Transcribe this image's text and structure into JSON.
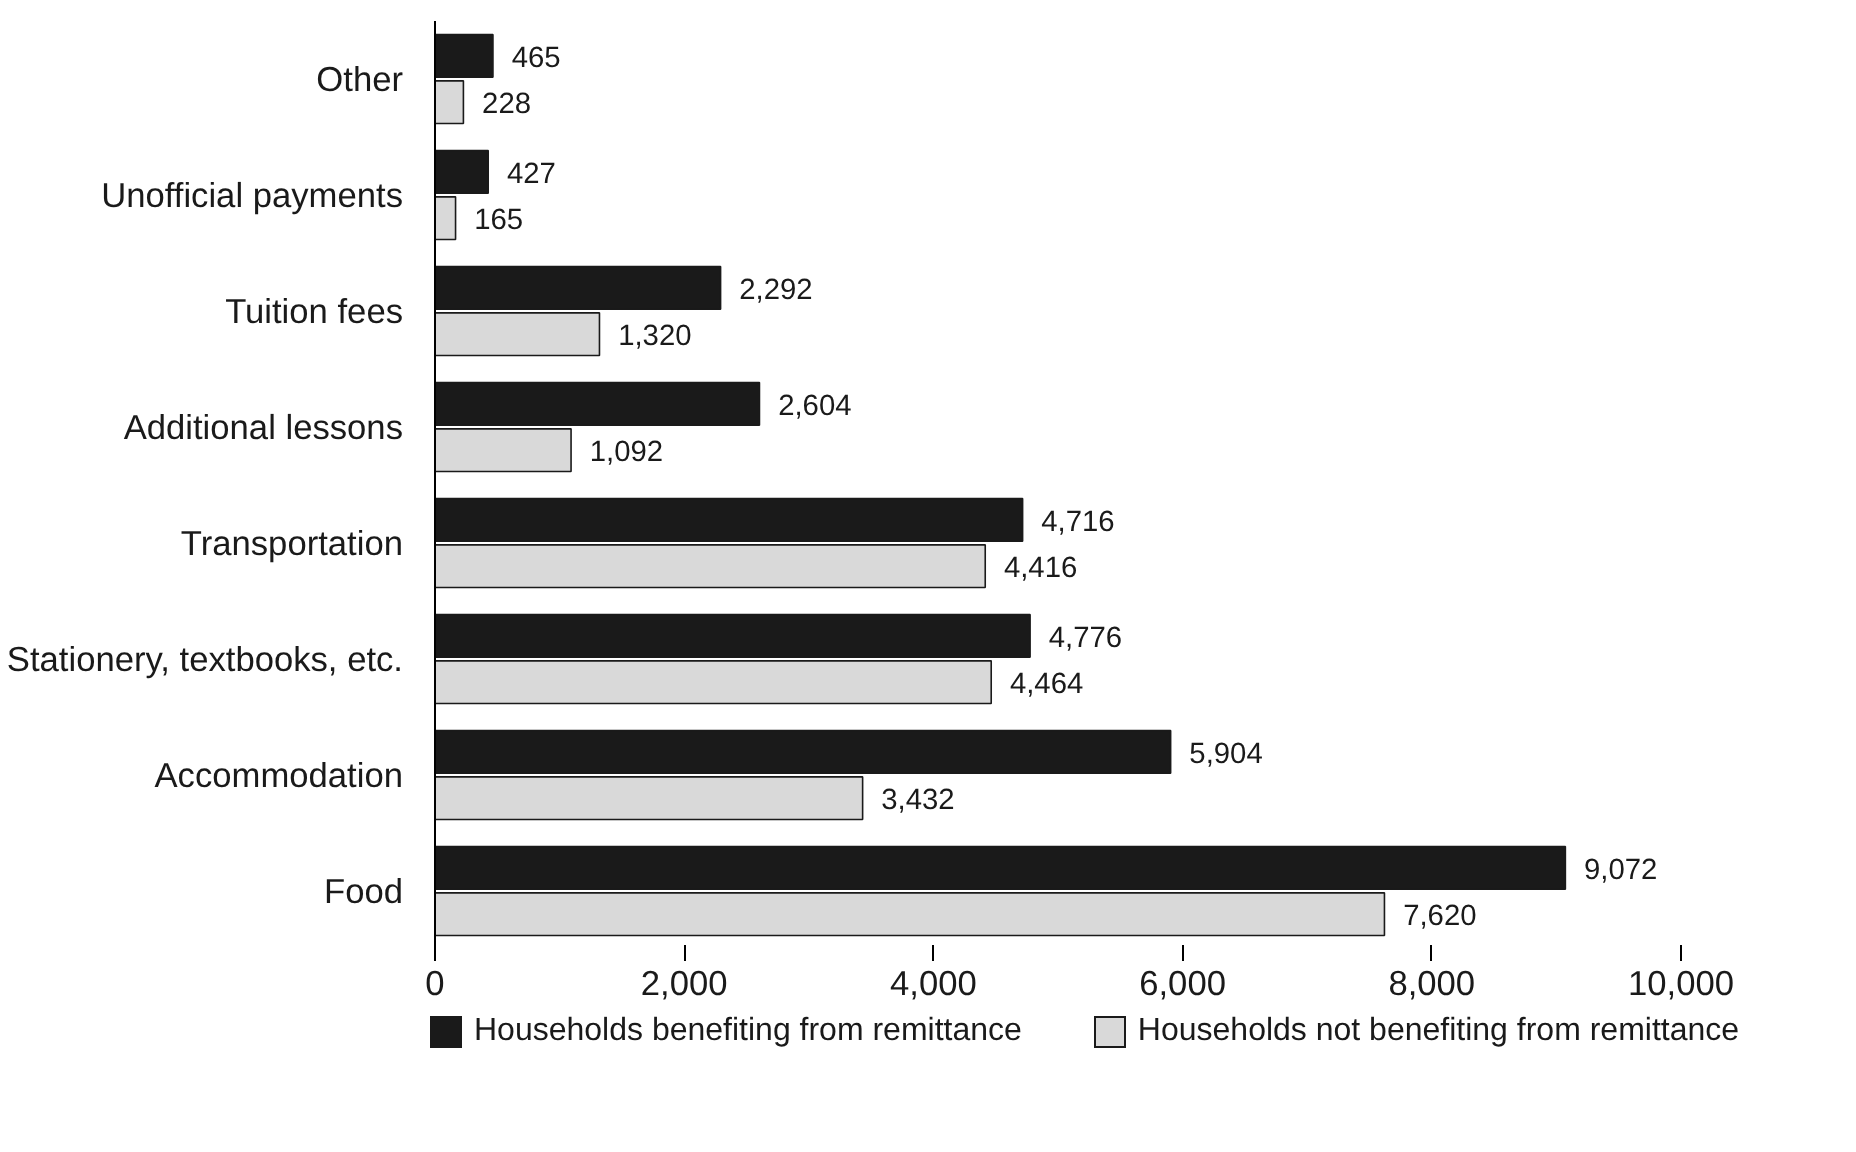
{
  "chart_data": {
    "type": "bar",
    "orientation": "horizontal",
    "categories": [
      "Other",
      "Unofficial payments",
      "Tuition fees",
      "Additional lessons",
      "Transportation",
      "Stationery, textbooks, etc.",
      "Accommodation",
      "Food"
    ],
    "series": [
      {
        "name": "Households benefiting from remittance",
        "color": "#1a1a1a",
        "values": [
          465,
          427,
          2292,
          2604,
          4716,
          4776,
          5904,
          9072
        ],
        "value_labels": [
          "465",
          "427",
          "2,292",
          "2,604",
          "4,716",
          "4,776",
          "5,904",
          "9,072"
        ]
      },
      {
        "name": "Households not benefiting from remittance",
        "color": "#d9d9d9",
        "values": [
          228,
          165,
          1320,
          1092,
          4416,
          4464,
          3432,
          7620
        ],
        "value_labels": [
          "228",
          "165",
          "1,320",
          "1,092",
          "4,416",
          "4,464",
          "3,432",
          "7,620"
        ]
      }
    ],
    "xlim": [
      0,
      10000
    ],
    "xticks": [
      0,
      {
        "value": 2000,
        "label": "2,000"
      },
      {
        "value": 4000,
        "label": "4,000"
      },
      {
        "value": 6000,
        "label": "6,000"
      },
      {
        "value": 8000,
        "label": "8,000"
      },
      {
        "value": 10000,
        "label": "10,000"
      }
    ],
    "legend": "bottom"
  }
}
